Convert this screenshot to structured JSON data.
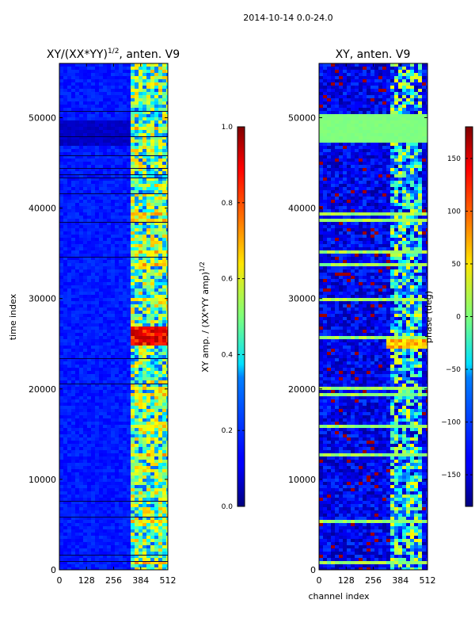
{
  "figure": {
    "suptitle": "2014-10-14 0.0-24.0"
  },
  "chart_data": [
    {
      "type": "heatmap",
      "title": "XY/(XX*YY)",
      "title_exponent": "1/2",
      "title_suffix": ", anten. V9",
      "xlabel": "",
      "ylabel": "time index",
      "xlim": [
        0,
        512
      ],
      "ylim": [
        0,
        56000
      ],
      "xticks": [
        0,
        128,
        256,
        384,
        512
      ],
      "yticks": [
        0,
        10000,
        20000,
        30000,
        40000,
        50000
      ],
      "colormap": "jet",
      "colorbar": {
        "label": "XY amp. / (XX*YY amp)",
        "label_exponent": "1/2",
        "range": [
          0.0,
          1.0
        ],
        "ticks": [
          "0.0",
          "0.2",
          "0.4",
          "0.6",
          "0.8",
          "1.0"
        ],
        "tick_values": [
          0.0,
          0.2,
          0.4,
          0.6,
          0.8,
          1.0
        ]
      },
      "description_values": {
        "background": 0.12,
        "active_channel_range": [
          330,
          512
        ],
        "active_level": 0.45,
        "bright_band_time": [
          25000,
          27000
        ],
        "dark_band_time": [
          47000,
          50000
        ]
      }
    },
    {
      "type": "heatmap",
      "title": "XY, anten. V9",
      "xlabel": "channel index",
      "ylabel": "",
      "xlim": [
        0,
        512
      ],
      "ylim": [
        0,
        56000
      ],
      "xticks": [
        0,
        128,
        256,
        384,
        512
      ],
      "yticks": [
        0,
        10000,
        20000,
        30000,
        40000,
        50000
      ],
      "colormap": "jet",
      "colorbar": {
        "label": "phase (deg)",
        "range": [
          -180,
          180
        ],
        "ticks": [
          "−150",
          "−100",
          "−50",
          "0",
          "50",
          "100",
          "150"
        ],
        "tick_values": [
          -150,
          -100,
          -50,
          0,
          50,
          100,
          150
        ]
      },
      "description_values": {
        "background_phase": -140,
        "flat_band_time": [
          47500,
          50500
        ],
        "flat_band_phase": 0,
        "hot_band_time": [
          24500,
          26000
        ]
      }
    }
  ]
}
